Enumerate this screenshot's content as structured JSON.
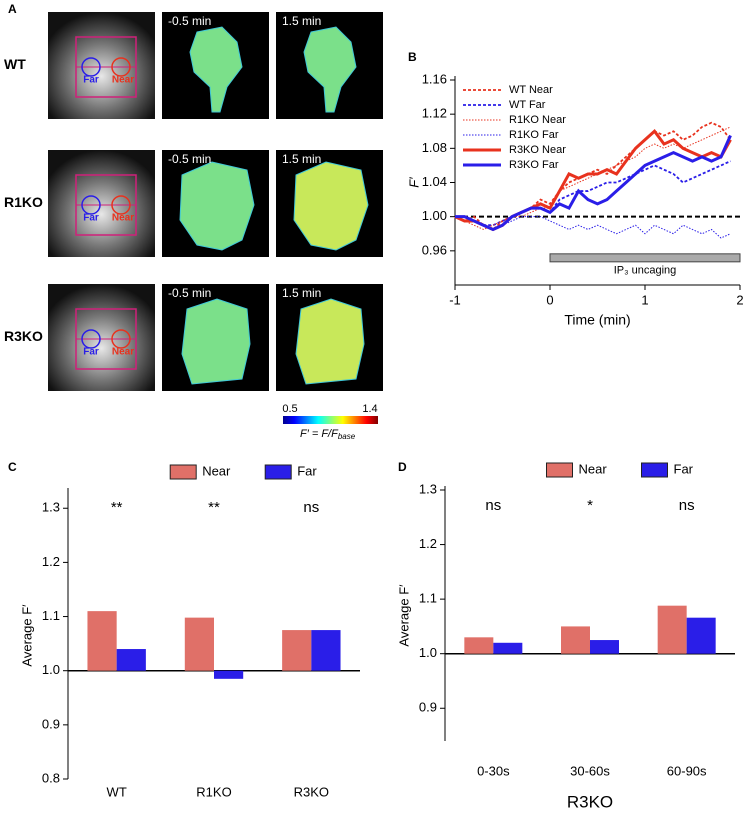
{
  "panel_a": {
    "label": "A",
    "rows": [
      {
        "name": "WT",
        "times": [
          "-0.5 min",
          "1.5 min"
        ],
        "far": "Far",
        "near": "Near"
      },
      {
        "name": "R1KO",
        "times": [
          "-0.5 min",
          "1.5 min"
        ],
        "far": "Far",
        "near": "Near"
      },
      {
        "name": "R3KO",
        "times": [
          "-0.5 min",
          "1.5 min"
        ],
        "far": "Far",
        "near": "Near"
      }
    ],
    "colorbar": {
      "min": 0.5,
      "max": 1.4,
      "label": "F′ = F/F",
      "label_sub": "base"
    }
  },
  "chart_data": [
    {
      "type": "line",
      "panel": "B",
      "xlabel": "Time (min)",
      "ylabel": "F′",
      "x": [
        -1,
        -0.9,
        -0.8,
        -0.7,
        -0.6,
        -0.5,
        -0.4,
        -0.3,
        -0.2,
        -0.1,
        0,
        0.1,
        0.2,
        0.3,
        0.4,
        0.5,
        0.6,
        0.7,
        0.8,
        0.9,
        1,
        1.1,
        1.2,
        1.3,
        1.4,
        1.5,
        1.6,
        1.7,
        1.8,
        1.9
      ],
      "series": [
        {
          "name": "WT Near",
          "color": "#e8321e",
          "line_style": "dotted",
          "values": [
            1.0,
            0.995,
            1.0,
            0.99,
            0.985,
            0.995,
            1.0,
            1.005,
            1.01,
            1.02,
            1.015,
            1.03,
            1.04,
            1.045,
            1.05,
            1.055,
            1.05,
            1.06,
            1.07,
            1.08,
            1.09,
            1.1,
            1.095,
            1.1,
            1.09,
            1.095,
            1.105,
            1.11,
            1.105,
            1.09
          ]
        },
        {
          "name": "WT Far",
          "color": "#2a1ee8",
          "line_style": "dotted",
          "values": [
            1.0,
            1.0,
            0.995,
            0.99,
            0.99,
            0.995,
            1.0,
            1.005,
            1.01,
            1.01,
            1.005,
            1.02,
            1.025,
            1.03,
            1.03,
            1.035,
            1.04,
            1.04,
            1.045,
            1.05,
            1.055,
            1.06,
            1.055,
            1.05,
            1.04,
            1.045,
            1.05,
            1.055,
            1.06,
            1.065
          ]
        },
        {
          "name": "R1KO Near",
          "color": "#e8321e",
          "line_style": "thin-dotted",
          "values": [
            1.0,
            0.995,
            0.99,
            0.985,
            0.99,
            0.995,
            1.0,
            1.0,
            1.005,
            1.01,
            1.01,
            1.03,
            1.035,
            1.04,
            1.045,
            1.05,
            1.055,
            1.06,
            1.065,
            1.07,
            1.08,
            1.085,
            1.08,
            1.085,
            1.08,
            1.085,
            1.09,
            1.095,
            1.1,
            1.105
          ]
        },
        {
          "name": "R1KO Far",
          "color": "#2a1ee8",
          "line_style": "thin-dotted",
          "values": [
            1.0,
            1.0,
            0.995,
            0.99,
            0.985,
            0.99,
            0.995,
            1.0,
            1.0,
            1.0,
            0.995,
            0.99,
            0.985,
            0.99,
            0.985,
            0.99,
            0.985,
            0.98,
            0.985,
            0.99,
            0.98,
            0.99,
            0.985,
            0.98,
            0.99,
            0.985,
            0.98,
            0.985,
            0.975,
            0.98
          ]
        },
        {
          "name": "R3KO Near",
          "color": "#e8321e",
          "line_style": "solid",
          "values": [
            1.0,
            0.995,
            0.995,
            0.99,
            0.985,
            0.99,
            1.0,
            1.005,
            1.01,
            1.015,
            1.01,
            1.03,
            1.05,
            1.045,
            1.05,
            1.05,
            1.055,
            1.05,
            1.065,
            1.08,
            1.09,
            1.1,
            1.085,
            1.09,
            1.08,
            1.075,
            1.07,
            1.075,
            1.07,
            1.09
          ]
        },
        {
          "name": "R3KO Far",
          "color": "#2a1ee8",
          "line_style": "solid",
          "values": [
            1.0,
            1.0,
            0.995,
            0.99,
            0.985,
            0.99,
            1.0,
            1.005,
            1.01,
            1.01,
            1.005,
            1.015,
            1.01,
            1.03,
            1.02,
            1.015,
            1.02,
            1.03,
            1.04,
            1.05,
            1.06,
            1.065,
            1.07,
            1.075,
            1.07,
            1.065,
            1.07,
            1.065,
            1.07,
            1.095
          ]
        }
      ],
      "xlim": [
        -1,
        2
      ],
      "xticks": [
        -1,
        0,
        1,
        2
      ],
      "ylim": [
        0.92,
        1.16
      ],
      "yticks": [
        0.96,
        {
          "value": 1,
          "label": "1.00"
        },
        1.04,
        1.08,
        1.12,
        1.16
      ],
      "reference_line": 1,
      "annotation": {
        "text": "IP₃ uncaging",
        "range": [
          0,
          2
        ]
      },
      "legend": "upper-left"
    },
    {
      "type": "bar",
      "panel": "C",
      "ylabel": "Average F′",
      "categories": [
        "WT",
        "R1KO",
        "R3KO"
      ],
      "series": [
        {
          "name": "Near",
          "color": "#e07068",
          "values": [
            1.11,
            1.098,
            1.075
          ]
        },
        {
          "name": "Far",
          "color": "#2a1ee8",
          "values": [
            1.04,
            0.985,
            1.075
          ]
        }
      ],
      "significance": [
        "**",
        "**",
        "ns"
      ],
      "bar_base": 1,
      "ylim": [
        0.8,
        1.33
      ],
      "yticks": [
        0.8,
        0.9,
        {
          "value": 1,
          "label": "1.0"
        },
        1.1,
        1.2,
        1.3
      ],
      "legend": "top"
    },
    {
      "type": "bar",
      "panel": "D",
      "ylabel": "Average F′",
      "xlabel": "R3KO",
      "categories": [
        "0-30s",
        "30-60s",
        "60-90s"
      ],
      "series": [
        {
          "name": "Near",
          "color": "#e07068",
          "values": [
            1.03,
            1.05,
            1.088
          ]
        },
        {
          "name": "Far",
          "color": "#2a1ee8",
          "values": [
            1.02,
            1.025,
            1.066
          ]
        }
      ],
      "significance": [
        "ns",
        "*",
        "ns"
      ],
      "bar_base": 1,
      "ylim": [
        0.84,
        1.3
      ],
      "yticks": [
        0.9,
        {
          "value": 1,
          "label": "1.0"
        },
        1.1,
        1.2,
        1.3
      ],
      "legend": "top"
    }
  ]
}
